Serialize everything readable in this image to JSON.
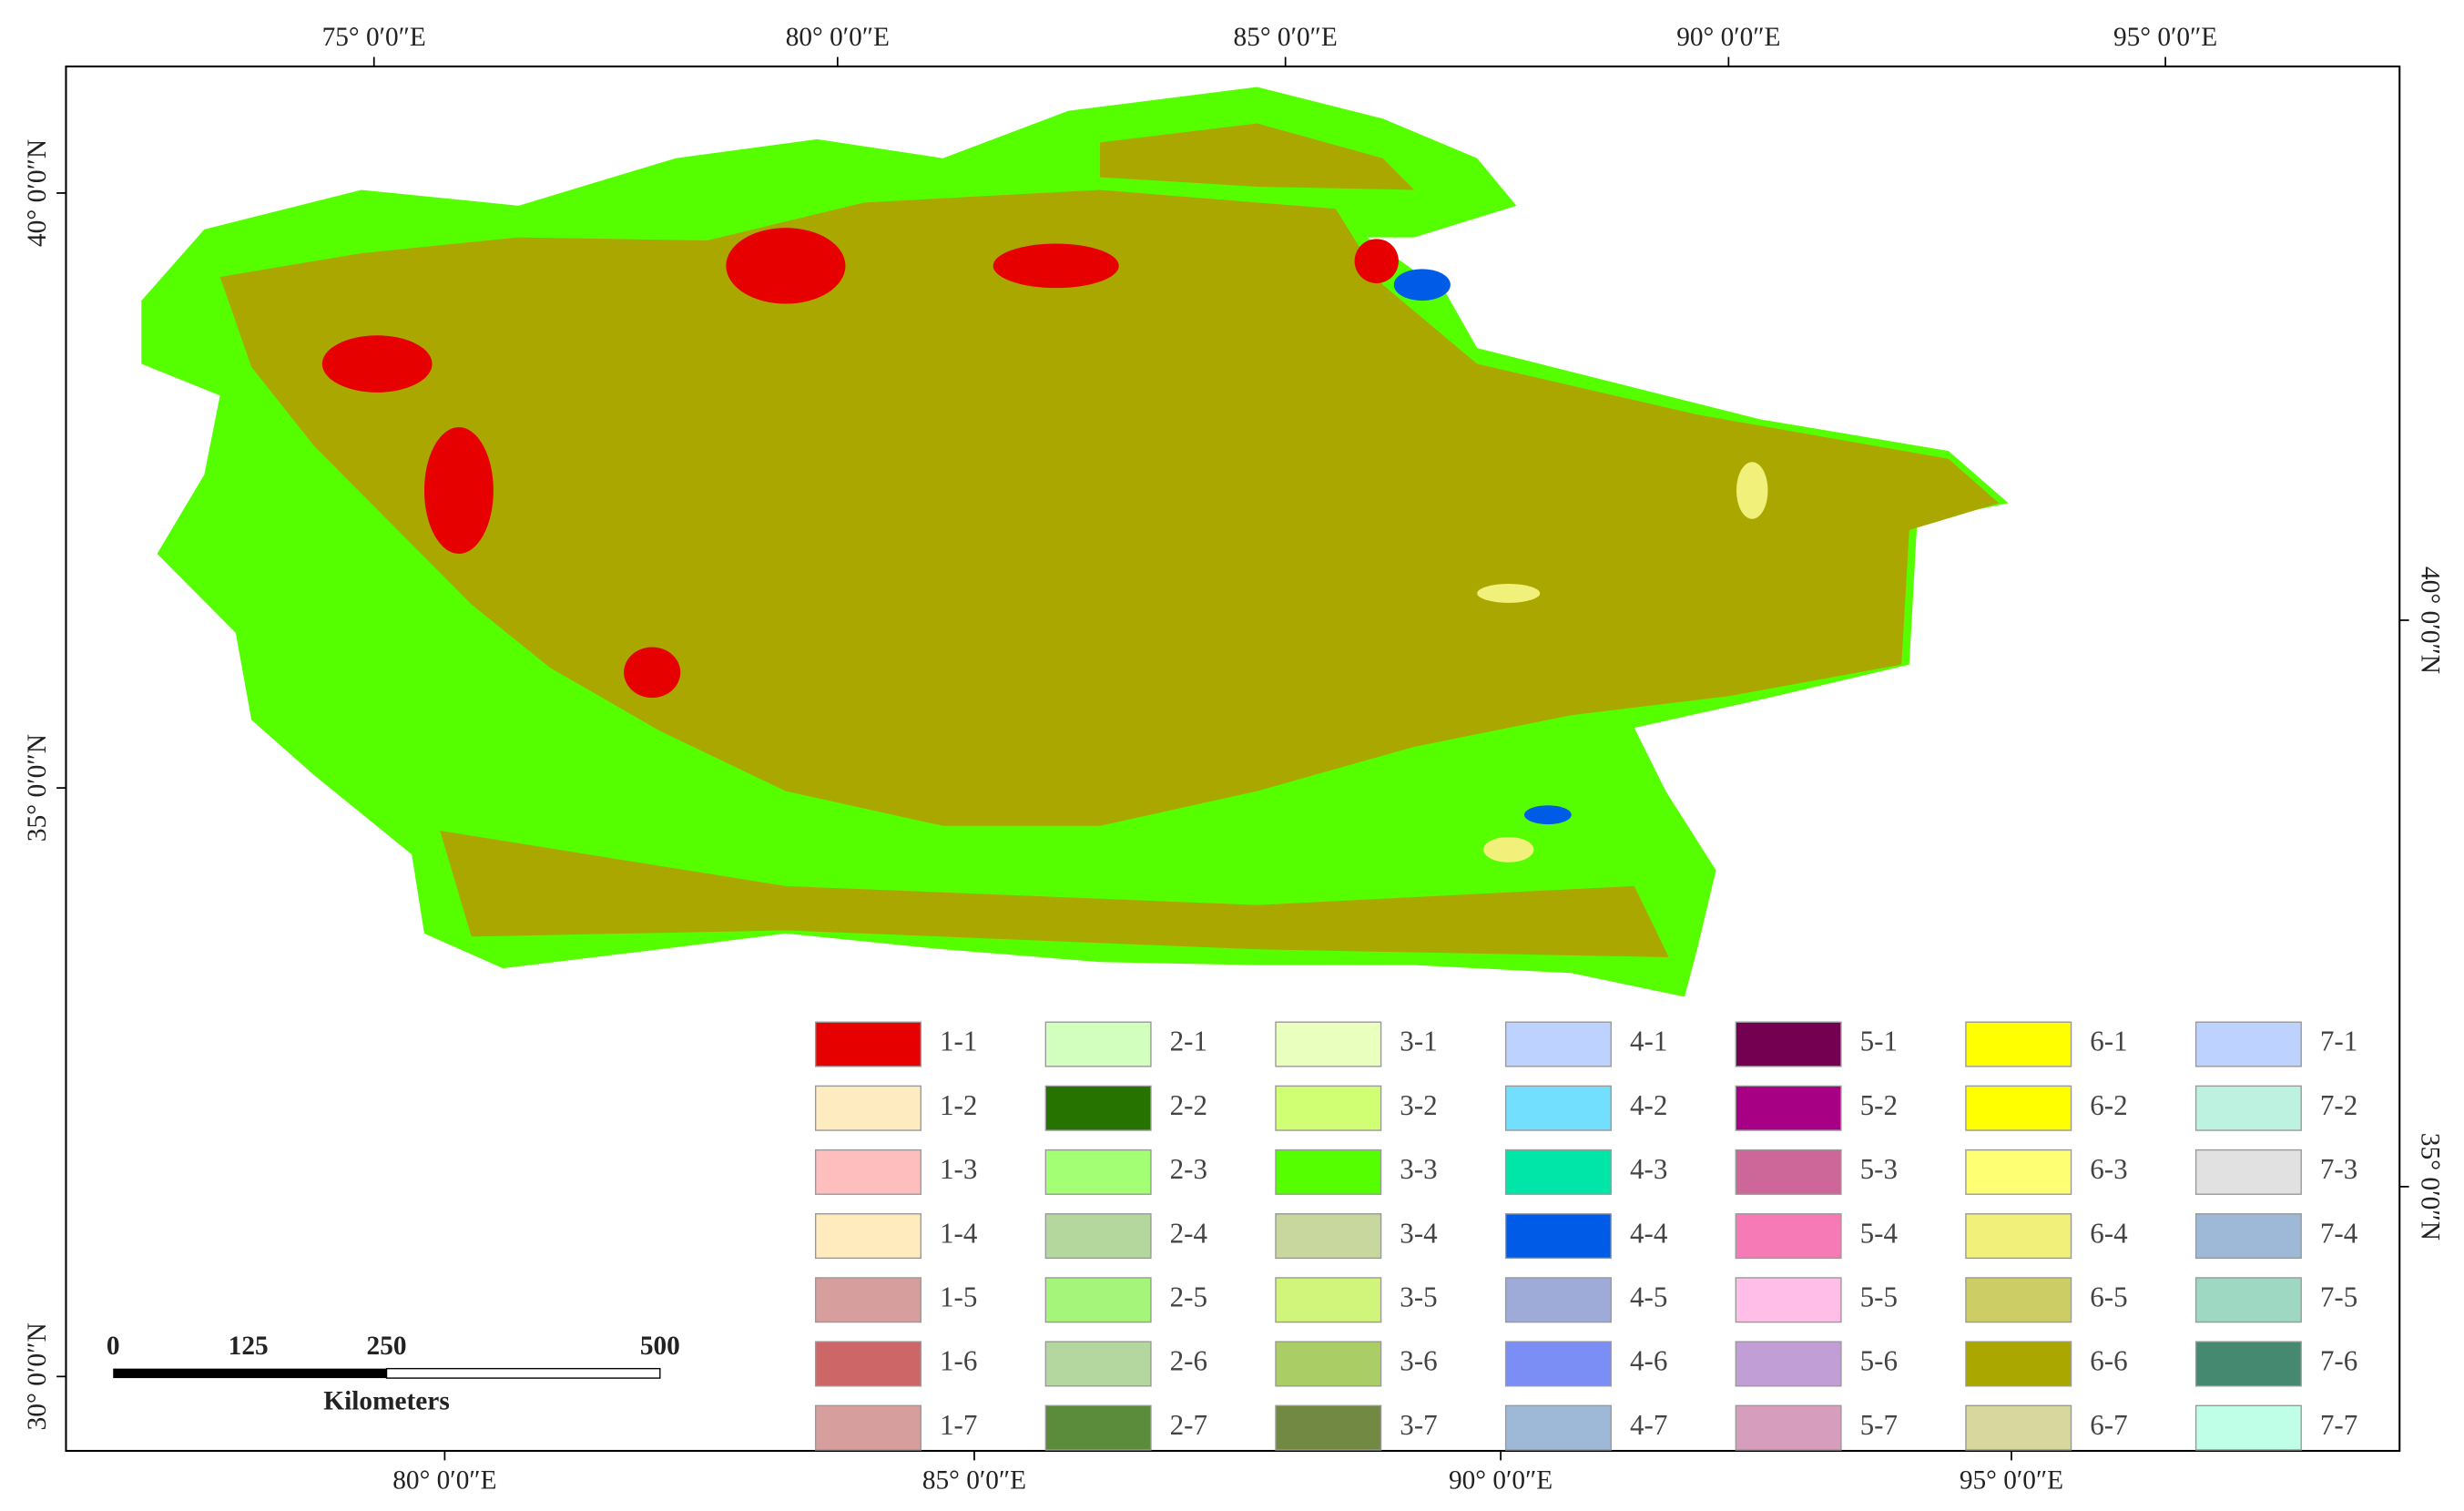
{
  "map": {
    "top_labels": [
      "75°  0′0″E",
      "80°  0′0″E",
      "85°  0′0″E",
      "90°  0′0″E",
      "95°  0′0″E"
    ],
    "bottom_labels": [
      "80°  0′0″E",
      "85°  0′0″E",
      "90°  0′0″E",
      "95°  0′0″E"
    ],
    "left_labels": [
      "40°  0′0″N",
      "35°  0′0″N",
      "30°  0′0″N"
    ],
    "right_labels": [
      "40°  0′0″N",
      "35°  0′0″N"
    ],
    "legend": [
      [
        {
          "label": "1-1",
          "color": "#e60000"
        },
        {
          "label": "1-2",
          "color": "#ffebc0"
        },
        {
          "label": "1-3",
          "color": "#ffbebe"
        },
        {
          "label": "1-4",
          "color": "#ffebbe"
        },
        {
          "label": "1-5",
          "color": "#d79e9e"
        },
        {
          "label": "1-6",
          "color": "#cd6666"
        },
        {
          "label": "1-7",
          "color": "#d79e9e"
        }
      ],
      [
        {
          "label": "2-1",
          "color": "#d3ffbe"
        },
        {
          "label": "2-2",
          "color": "#267300"
        },
        {
          "label": "2-3",
          "color": "#a3ff73"
        },
        {
          "label": "2-4",
          "color": "#b4d79e"
        },
        {
          "label": "2-5",
          "color": "#a5f57a"
        },
        {
          "label": "2-6",
          "color": "#b4d7a0"
        },
        {
          "label": "2-7",
          "color": "#5a8c3c"
        }
      ],
      [
        {
          "label": "3-1",
          "color": "#e9ffbe"
        },
        {
          "label": "3-2",
          "color": "#d1ff73"
        },
        {
          "label": "3-3",
          "color": "#55ff00"
        },
        {
          "label": "3-4",
          "color": "#c8d79e"
        },
        {
          "label": "3-5",
          "color": "#d1f57a"
        },
        {
          "label": "3-6",
          "color": "#abcd66"
        },
        {
          "label": "3-7",
          "color": "#728944"
        }
      ],
      [
        {
          "label": "4-1",
          "color": "#bed2ff"
        },
        {
          "label": "4-2",
          "color": "#73dfff"
        },
        {
          "label": "4-3",
          "color": "#00e6a9"
        },
        {
          "label": "4-4",
          "color": "#005ce6"
        },
        {
          "label": "4-5",
          "color": "#9eaad7"
        },
        {
          "label": "4-6",
          "color": "#7a8ef5"
        },
        {
          "label": "4-7",
          "color": "#9eb8d7"
        }
      ],
      [
        {
          "label": "5-1",
          "color": "#730050"
        },
        {
          "label": "5-2",
          "color": "#a80084"
        },
        {
          "label": "5-3",
          "color": "#cd6699"
        },
        {
          "label": "5-4",
          "color": "#f57ab6"
        },
        {
          "label": "5-5",
          "color": "#ffbee8"
        },
        {
          "label": "5-6",
          "color": "#c29ed7"
        },
        {
          "label": "5-7",
          "color": "#d69dbc"
        }
      ],
      [
        {
          "label": "6-1",
          "color": "#ffff00"
        },
        {
          "label": "6-2",
          "color": "#ffff00"
        },
        {
          "label": "6-3",
          "color": "#ffff73"
        },
        {
          "label": "6-4",
          "color": "#f0f07a"
        },
        {
          "label": "6-5",
          "color": "#cdcd66"
        },
        {
          "label": "6-6",
          "color": "#aaa800"
        },
        {
          "label": "6-7",
          "color": "#d7d79e"
        }
      ],
      [
        {
          "label": "7-1",
          "color": "#bed2ff"
        },
        {
          "label": "7-2",
          "color": "#bef2e0"
        },
        {
          "label": "7-3",
          "color": "#e1e1e1"
        },
        {
          "label": "7-4",
          "color": "#9eb8d7"
        },
        {
          "label": "7-5",
          "color": "#9ed7c2"
        },
        {
          "label": "7-6",
          "color": "#448970"
        },
        {
          "label": "7-7",
          "color": "#bfffe8"
        }
      ]
    ],
    "scale_bar": {
      "ticks": [
        0,
        125,
        250,
        500
      ],
      "unit": "Kilometers"
    }
  }
}
